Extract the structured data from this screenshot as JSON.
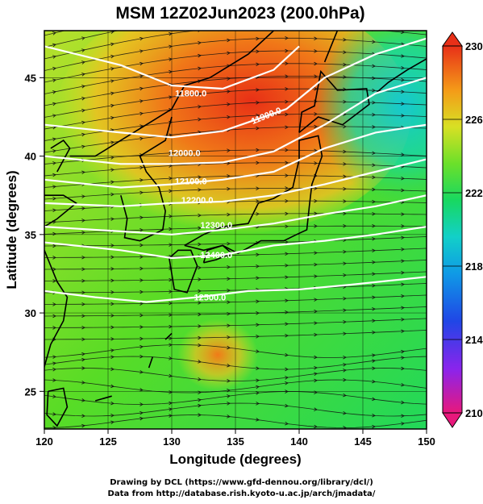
{
  "title": "MSM 12Z02Jun2023 (200.0hPa)",
  "x_axis": {
    "label": "Longitude (degrees)",
    "ticks": [
      "120",
      "125",
      "130",
      "135",
      "140",
      "145",
      "150"
    ]
  },
  "y_axis": {
    "label": "Latitude  (degrees)",
    "ticks": [
      "25",
      "30",
      "35",
      "40",
      "45"
    ]
  },
  "colorbar": {
    "ticks": [
      "230",
      "226",
      "222",
      "218",
      "214",
      "210"
    ],
    "colors": [
      "#e8187c",
      "#c01ae6",
      "#6a2af0",
      "#2046e6",
      "#0f8ee6",
      "#10c8d8",
      "#16d8a0",
      "#18d850",
      "#36e028",
      "#88e02a",
      "#c8e02a",
      "#f0e020",
      "#f8b018",
      "#f07018",
      "#e83818"
    ]
  },
  "contours": [
    {
      "label": "11800.0"
    },
    {
      "label": "11900.0"
    },
    {
      "label": "12000.0"
    },
    {
      "label": "12100.0"
    },
    {
      "label": "12200.0"
    },
    {
      "label": "12300.0"
    },
    {
      "label": "12400.0"
    },
    {
      "label": "12500.0"
    }
  ],
  "credits": [
    "Drawing by DCL (https://www.gfd-dennou.org/library/dcl/)",
    "Data from http://database.rish.kyoto-u.ac.jp/arch/jmadata/"
  ]
}
